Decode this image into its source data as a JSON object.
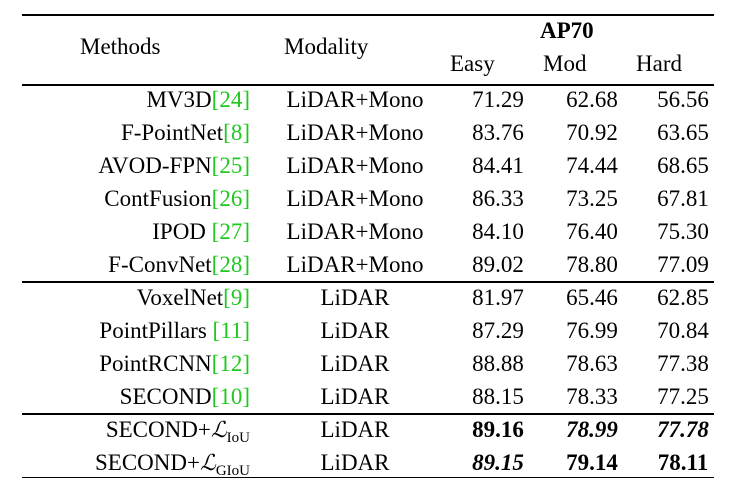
{
  "header": {
    "methods": "Methods",
    "modality": "Modality",
    "group": "AP70",
    "easy": "Easy",
    "mod": "Mod",
    "hard": "Hard"
  },
  "rows": [
    {
      "name": "MV3D",
      "cite": "[24]",
      "modality": "LiDAR+Mono",
      "easy": "71.29",
      "mod": "62.68",
      "hard": "56.56"
    },
    {
      "name": "F-PointNet",
      "cite": "[8]",
      "modality": "LiDAR+Mono",
      "easy": "83.76",
      "mod": "70.92",
      "hard": "63.65"
    },
    {
      "name": "AVOD-FPN",
      "cite": "[25]",
      "modality": "LiDAR+Mono",
      "easy": "84.41",
      "mod": "74.44",
      "hard": "68.65"
    },
    {
      "name": "ContFusion",
      "cite": "[26]",
      "modality": "LiDAR+Mono",
      "easy": "86.33",
      "mod": "73.25",
      "hard": "67.81"
    },
    {
      "name": "IPOD ",
      "cite": "[27]",
      "modality": "LiDAR+Mono",
      "easy": "84.10",
      "mod": "76.40",
      "hard": "75.30"
    },
    {
      "name": "F-ConvNet",
      "cite": "[28]",
      "modality": "LiDAR+Mono",
      "easy": "89.02",
      "mod": "78.80",
      "hard": "77.09"
    },
    {
      "name": "VoxelNet",
      "cite": "[9]",
      "modality": "LiDAR",
      "easy": "81.97",
      "mod": "65.46",
      "hard": "62.85"
    },
    {
      "name": "PointPillars ",
      "cite": "[11]",
      "modality": "LiDAR",
      "easy": "87.29",
      "mod": "76.99",
      "hard": "70.84"
    },
    {
      "name": "PointRCNN",
      "cite": "[12]",
      "modality": "LiDAR",
      "easy": "88.88",
      "mod": "78.63",
      "hard": "77.38"
    },
    {
      "name": "SECOND",
      "cite": "[10]",
      "modality": "LiDAR",
      "easy": "88.15",
      "mod": "78.33",
      "hard": "77.25"
    }
  ],
  "proposed": [
    {
      "prefix": "SECOND+",
      "loss": "ℒ",
      "sub": "IoU",
      "modality": "LiDAR",
      "easy": "89.16",
      "mod": "78.99",
      "hard": "77.78"
    },
    {
      "prefix": "SECOND+",
      "loss": "ℒ",
      "sub": "GIoU",
      "modality": "LiDAR",
      "easy": "89.15",
      "mod": "79.14",
      "hard": "78.11"
    }
  ]
}
